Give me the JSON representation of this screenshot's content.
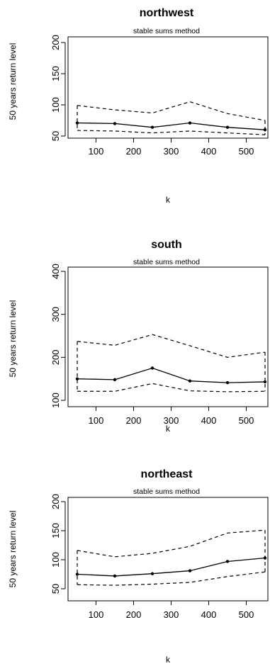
{
  "chart_data": [
    {
      "type": "line",
      "title": "northwest",
      "subtitle": "stable sums method",
      "xlabel": "k",
      "ylabel": "50 years return level",
      "xlim": [
        50,
        550
      ],
      "ylim": [
        50,
        200
      ],
      "x_ticks": [
        100,
        200,
        300,
        400,
        500
      ],
      "y_ticks": [
        50,
        100,
        150,
        200
      ],
      "x": [
        50,
        150,
        250,
        350,
        450,
        550
      ],
      "series": [
        {
          "role": "estimate",
          "style": "solid-with-points",
          "values": [
            71,
            70,
            64,
            71,
            64,
            60
          ]
        },
        {
          "role": "upper-bound",
          "style": "dashed",
          "values": [
            99,
            92,
            87,
            105,
            86,
            75
          ]
        },
        {
          "role": "lower-bound",
          "style": "dashed",
          "values": [
            59,
            58,
            55,
            58,
            55,
            52
          ]
        }
      ],
      "grid": false
    },
    {
      "type": "line",
      "title": "south",
      "subtitle": "stable sums method",
      "xlabel": "k",
      "ylabel": "50 years return level",
      "xlim": [
        50,
        550
      ],
      "ylim": [
        100,
        400
      ],
      "x_ticks": [
        100,
        200,
        300,
        400,
        500
      ],
      "y_ticks": [
        100,
        200,
        300,
        400
      ],
      "x": [
        50,
        150,
        250,
        350,
        450,
        550
      ],
      "series": [
        {
          "role": "estimate",
          "style": "solid-with-points",
          "values": [
            150,
            148,
            175,
            145,
            141,
            143
          ]
        },
        {
          "role": "upper-bound",
          "style": "dashed",
          "values": [
            237,
            228,
            253,
            227,
            200,
            212
          ]
        },
        {
          "role": "lower-bound",
          "style": "dashed",
          "values": [
            121,
            121,
            139,
            122,
            120,
            121
          ]
        }
      ],
      "grid": false
    },
    {
      "type": "line",
      "title": "northeast",
      "subtitle": "stable sums method",
      "xlabel": "k",
      "ylabel": "50 years return level",
      "xlim": [
        50,
        550
      ],
      "ylim": [
        50,
        200
      ],
      "x_ticks": [
        100,
        200,
        300,
        400,
        500
      ],
      "y_ticks": [
        50,
        100,
        150,
        200
      ],
      "x": [
        50,
        150,
        250,
        350,
        450,
        550
      ],
      "series": [
        {
          "role": "estimate",
          "style": "solid-with-points",
          "values": [
            75,
            72,
            76,
            81,
            97,
            103
          ]
        },
        {
          "role": "upper-bound",
          "style": "dashed",
          "values": [
            116,
            105,
            111,
            123,
            146,
            151
          ]
        },
        {
          "role": "lower-bound",
          "style": "dashed",
          "values": [
            57,
            56,
            58,
            61,
            71,
            79
          ]
        }
      ],
      "grid": false
    }
  ]
}
